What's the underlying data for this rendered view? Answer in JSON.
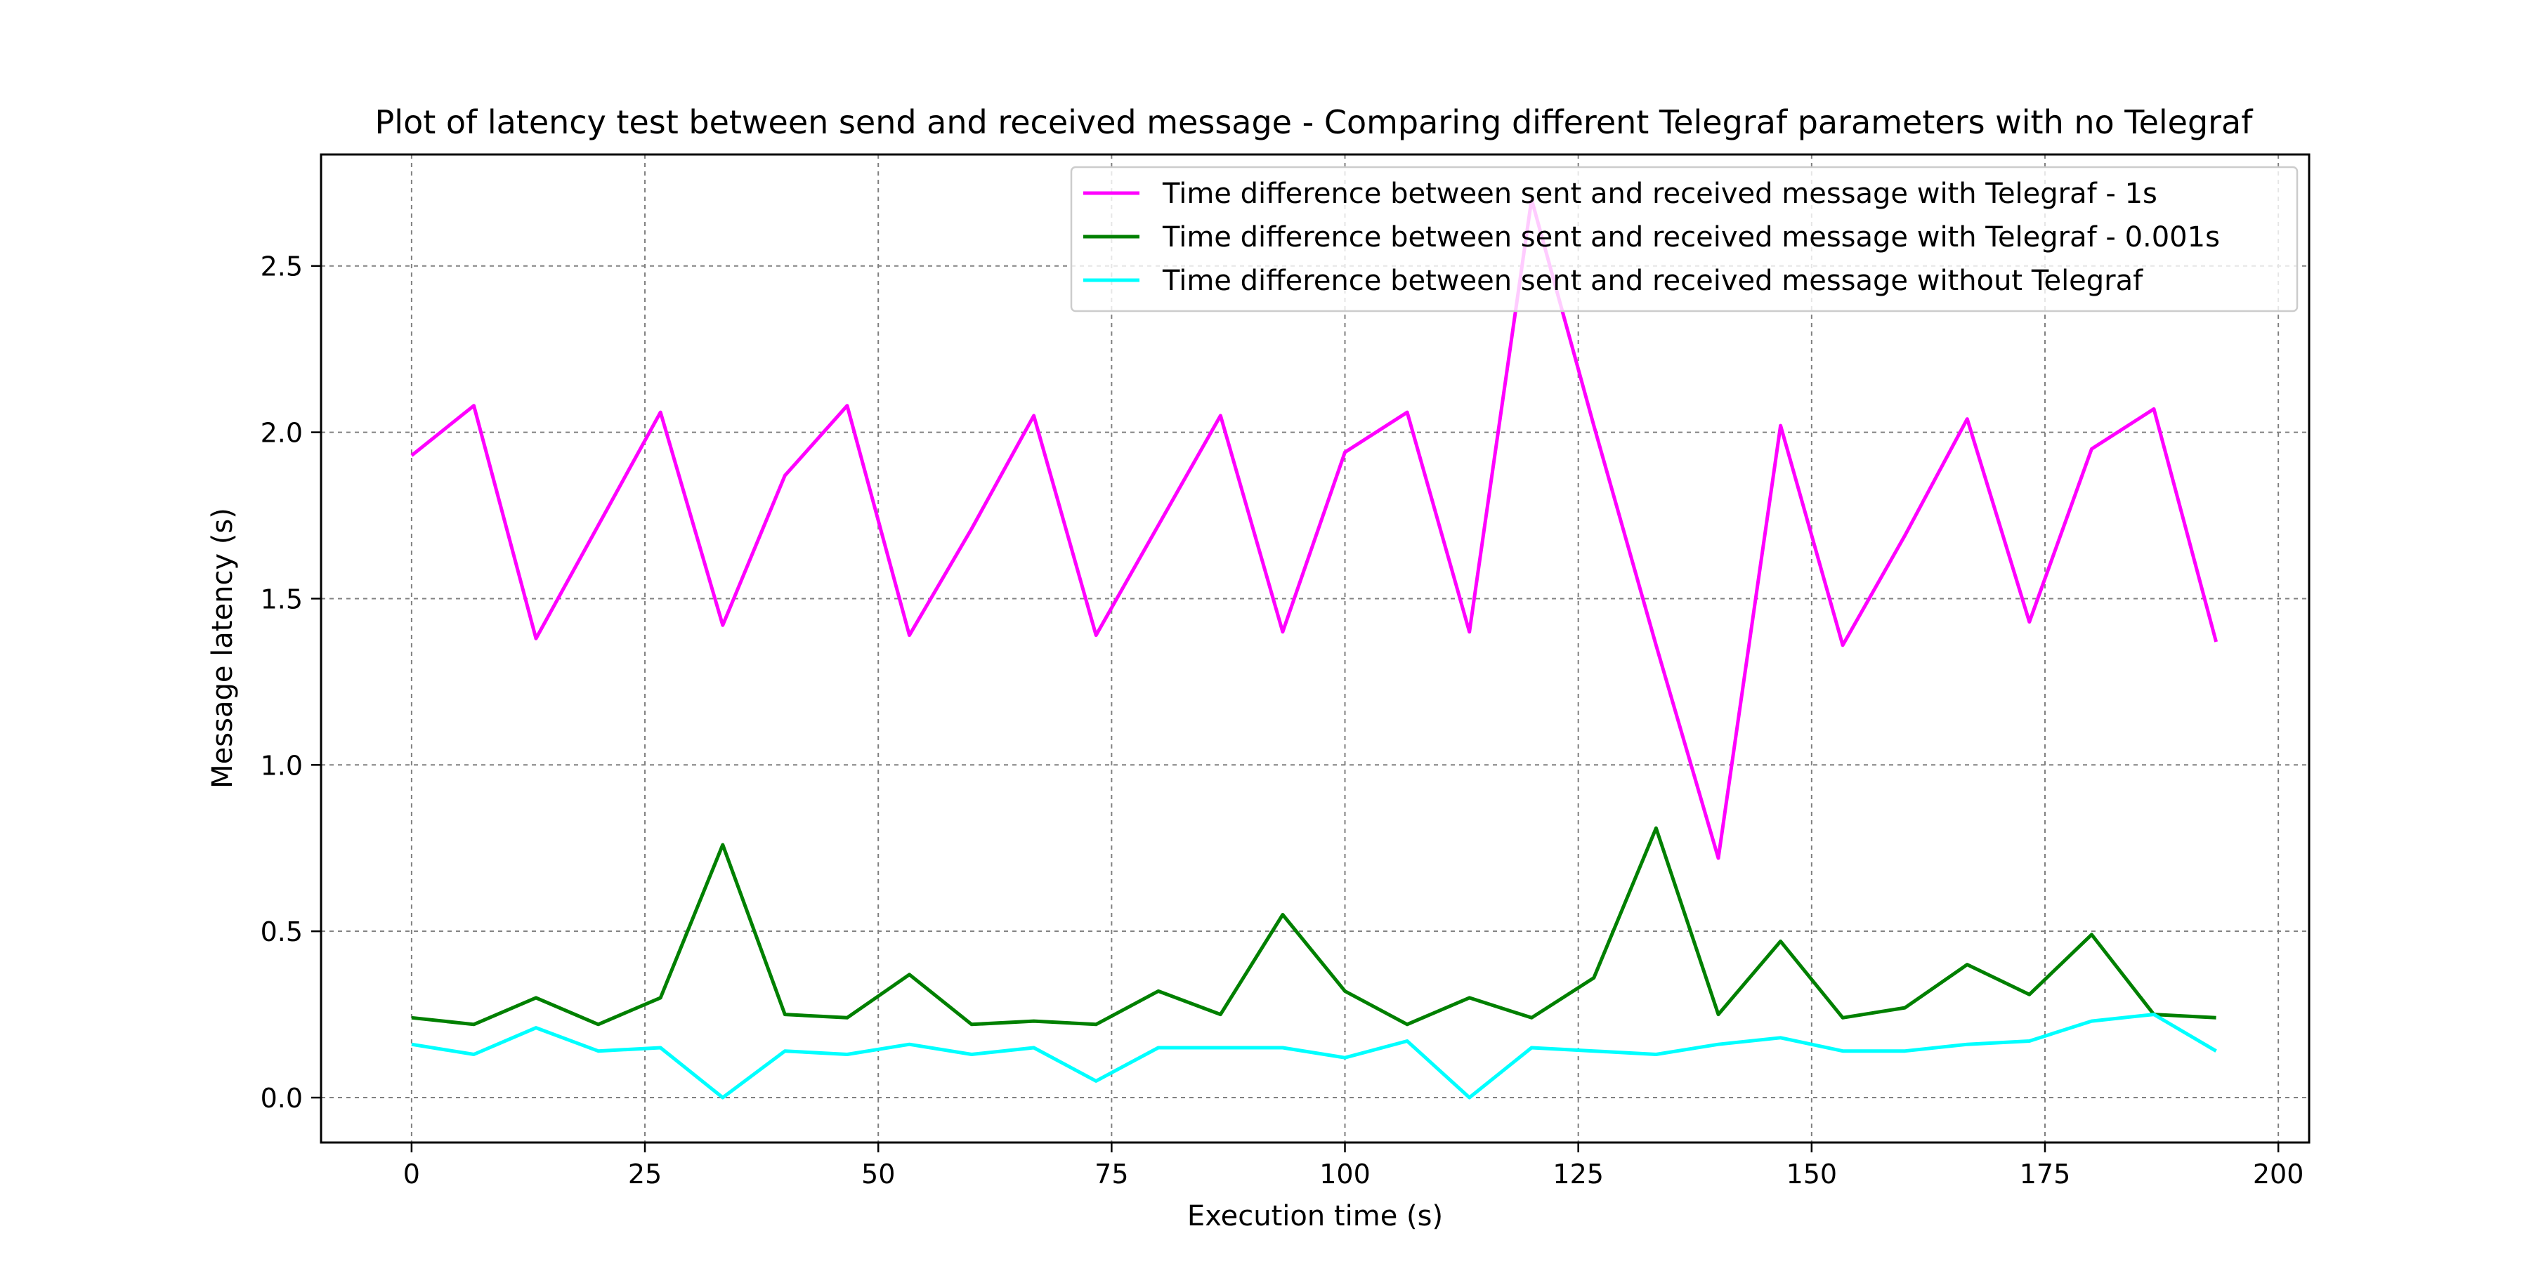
{
  "chart_data": {
    "type": "line",
    "title": "Plot of latency test between send and received message - Comparing different Telegraf parameters with no Telegraf",
    "xlabel": "Execution time (s)",
    "ylabel": "Message latency (s)",
    "xlim": [
      -9.7,
      203.3
    ],
    "ylim": [
      -0.135,
      2.835
    ],
    "xticks": [
      0,
      25,
      50,
      75,
      100,
      125,
      150,
      175,
      200
    ],
    "xtick_labels": [
      "0",
      "25",
      "50",
      "75",
      "100",
      "125",
      "150",
      "175",
      "200"
    ],
    "yticks": [
      0.0,
      0.5,
      1.0,
      1.5,
      2.0,
      2.5
    ],
    "ytick_labels": [
      "0.0",
      "0.5",
      "1.0",
      "1.5",
      "2.0",
      "2.5"
    ],
    "grid": true,
    "legend_position": "upper right",
    "x": [
      0,
      6.667,
      13.333,
      20,
      26.667,
      33.333,
      40,
      46.667,
      53.333,
      60,
      66.667,
      73.333,
      80,
      86.667,
      93.333,
      100,
      106.667,
      113.333,
      120,
      126.667,
      133.333,
      140,
      146.667,
      153.333,
      160,
      166.667,
      173.333,
      180,
      186.667,
      193.333
    ],
    "series": [
      {
        "name": "Time difference between sent and received message with Telegraf - 1s",
        "color": "#ff00ff",
        "values": [
          1.93,
          2.08,
          1.38,
          1.72,
          2.06,
          1.42,
          1.87,
          2.08,
          1.39,
          1.71,
          2.05,
          1.39,
          1.72,
          2.05,
          1.4,
          1.94,
          2.06,
          1.4,
          2.7,
          2.02,
          1.36,
          0.72,
          2.02,
          1.36,
          1.69,
          2.04,
          1.43,
          1.95,
          2.07,
          1.37
        ]
      },
      {
        "name": "Time difference between sent and received message with Telegraf - 0.001s",
        "color": "#008000",
        "values": [
          0.24,
          0.22,
          0.3,
          0.22,
          0.3,
          0.76,
          0.25,
          0.24,
          0.37,
          0.22,
          0.23,
          0.22,
          0.32,
          0.25,
          0.55,
          0.32,
          0.22,
          0.3,
          0.24,
          0.36,
          0.81,
          0.25,
          0.47,
          0.24,
          0.27,
          0.4,
          0.31,
          0.49,
          0.25,
          0.24
        ]
      },
      {
        "name": "Time difference between sent and received message without Telegraf",
        "color": "#00ffff",
        "values": [
          0.16,
          0.13,
          0.21,
          0.14,
          0.15,
          0.0,
          0.14,
          0.13,
          0.16,
          0.13,
          0.15,
          0.05,
          0.15,
          0.15,
          0.15,
          0.12,
          0.17,
          0.0,
          0.15,
          0.14,
          0.13,
          0.16,
          0.18,
          0.14,
          0.14,
          0.16,
          0.17,
          0.23,
          0.25,
          0.14
        ]
      }
    ]
  }
}
